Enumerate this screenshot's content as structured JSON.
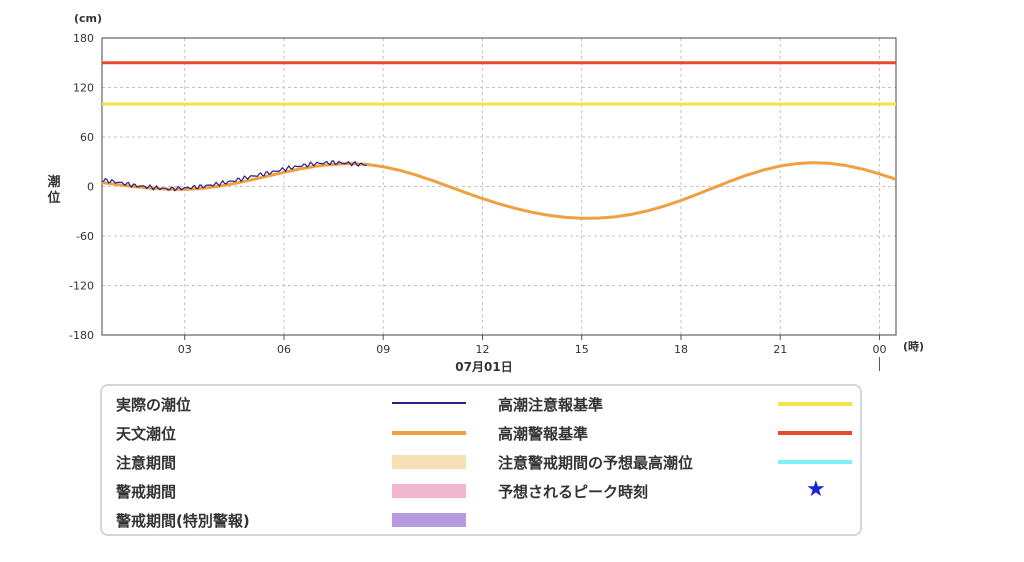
{
  "chart_data": {
    "type": "line",
    "y_unit": "(cm)",
    "x_unit": "(時)",
    "ylabel": "潮位",
    "date_label": "07月01日",
    "ylim": [
      -180,
      180
    ],
    "yticks": [
      "180",
      "120",
      "60",
      "0",
      "-60",
      "-120",
      "-180"
    ],
    "xlim": [
      0.5,
      24.5
    ],
    "xticks": [
      {
        "hour": 3,
        "label": "03"
      },
      {
        "hour": 6,
        "label": "06"
      },
      {
        "hour": 9,
        "label": "09"
      },
      {
        "hour": 12,
        "label": "12"
      },
      {
        "hour": 15,
        "label": "15"
      },
      {
        "hour": 18,
        "label": "18"
      },
      {
        "hour": 21,
        "label": "21"
      },
      {
        "hour": 24,
        "label": "00"
      }
    ],
    "reference_lines": [
      {
        "name": "高潮警報基準",
        "value": 150,
        "color": "#e84a2f"
      },
      {
        "name": "高潮注意報基準",
        "value": 100,
        "color": "#f0e44a"
      }
    ],
    "series": [
      {
        "name": "天文潮位",
        "color": "#f0a040",
        "x": [
          0.5,
          1,
          1.5,
          2,
          2.5,
          3,
          3.5,
          4,
          4.5,
          5,
          5.5,
          6,
          6.5,
          7,
          7.5,
          8,
          8.5,
          9,
          9.5,
          10,
          10.5,
          11,
          11.5,
          12,
          12.5,
          13,
          13.5,
          14,
          14.5,
          15,
          15.5,
          16,
          16.5,
          17,
          17.5,
          18,
          18.5,
          19,
          19.5,
          20,
          20.5,
          21,
          21.5,
          22,
          22.5,
          23,
          23.5,
          24,
          24.5
        ],
        "y": [
          4.7,
          2.2,
          -0.2,
          -2.2,
          -3.4,
          -3.5,
          -2.4,
          0.1,
          3.6,
          7.9,
          12.6,
          17.2,
          21.4,
          24.8,
          26.9,
          27.7,
          26.8,
          24.0,
          19.6,
          13.8,
          7.1,
          -0.2,
          -7.6,
          -14.6,
          -21.0,
          -26.6,
          -31.3,
          -34.9,
          -37.4,
          -38.5,
          -38.3,
          -36.8,
          -33.8,
          -29.4,
          -23.7,
          -16.9,
          -9.3,
          -1.3,
          6.6,
          13.9,
          20.1,
          24.8,
          27.8,
          28.9,
          28.1,
          25.4,
          21.0,
          15.3,
          8.8
        ]
      },
      {
        "name": "実際の潮位",
        "color": "#2a1e8a",
        "x": [
          0.5,
          1,
          1.5,
          2,
          2.5,
          3,
          3.5,
          4,
          4.5,
          5,
          5.5,
          6,
          6.5,
          7,
          7.5,
          8,
          8.5
        ],
        "y": [
          8,
          5,
          1,
          -1,
          -3,
          -2,
          0,
          3,
          7,
          12,
          16,
          21,
          25,
          28,
          29,
          28,
          26
        ]
      }
    ]
  },
  "legend": {
    "items": [
      {
        "label": "実際の潮位",
        "kind": "line",
        "color": "#2a1e8a"
      },
      {
        "label": "天文潮位",
        "kind": "line",
        "color": "#f0a040"
      },
      {
        "label": "注意期間",
        "kind": "band",
        "color": "#f7dfb6"
      },
      {
        "label": "警戒期間",
        "kind": "band",
        "color": "#f2b6cf"
      },
      {
        "label": "警戒期間(特別警報)",
        "kind": "band",
        "color": "#b59ae0"
      },
      {
        "label": "高潮注意報基準",
        "kind": "line",
        "color": "#f0e44a"
      },
      {
        "label": "高潮警報基準",
        "kind": "line",
        "color": "#e84a2f"
      },
      {
        "label": "注意警戒期間の予想最高潮位",
        "kind": "line",
        "color": "#7ff0f5"
      },
      {
        "label": "予想されるピーク時刻",
        "kind": "star",
        "color": "#1a22d6",
        "icon": "★"
      }
    ]
  }
}
